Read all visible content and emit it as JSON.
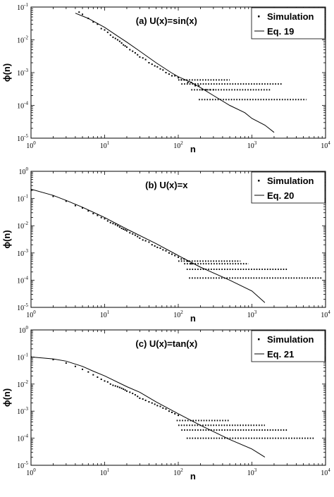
{
  "chart_data": [
    {
      "type": "scatter",
      "title": "(a) U(x)=sin(x)",
      "xlabel": "n",
      "ylabel": "ϕ(n)",
      "xscale": "log",
      "yscale": "log",
      "xlim": [
        1,
        10000
      ],
      "ylim": [
        1e-05,
        0.1
      ],
      "x_ticks": [
        "10^0",
        "10^1",
        "10^2",
        "10^3",
        "10^4"
      ],
      "y_ticks": [
        "10^-5",
        "10^-4",
        "10^-3",
        "10^-2",
        "10^-1"
      ],
      "legend": {
        "position": "top-right",
        "entries": [
          "Simulation",
          "Eq. 19"
        ]
      },
      "series": [
        {
          "name": "Simulation",
          "kind": "points",
          "x": [
            4.5,
            5,
            6,
            7,
            8,
            9,
            10,
            11,
            12,
            13,
            14,
            15,
            16,
            17,
            18,
            19,
            20,
            22,
            24,
            26,
            28,
            30,
            33,
            36,
            40,
            44,
            48,
            52,
            57,
            62,
            68,
            75,
            82,
            90,
            100,
            110,
            120,
            135,
            150,
            170,
            190,
            210,
            240,
            270,
            300
          ],
          "y": [
            0.07,
            0.06,
            0.045,
            0.035,
            0.03,
            0.022,
            0.02,
            0.017,
            0.014,
            0.012,
            0.011,
            0.01,
            0.009,
            0.008,
            0.007,
            0.0065,
            0.006,
            0.005,
            0.0045,
            0.004,
            0.0035,
            0.003,
            0.0028,
            0.0025,
            0.002,
            0.0018,
            0.0016,
            0.0015,
            0.0013,
            0.0012,
            0.001,
            0.0009,
            0.0008,
            0.0008,
            0.0007,
            0.0006,
            0.0006,
            0.0005,
            0.0005,
            0.0004,
            0.0004,
            0.0003,
            0.0003,
            0.0003,
            0.0003
          ]
        },
        {
          "name": "Eq. 19",
          "kind": "line",
          "x": [
            4,
            6,
            10,
            15,
            20,
            30,
            50,
            80,
            100,
            150,
            200,
            300,
            500,
            800,
            1000,
            1500,
            2000
          ],
          "y": [
            0.065,
            0.045,
            0.024,
            0.013,
            0.0085,
            0.0045,
            0.002,
            0.001,
            0.00075,
            0.0005,
            0.00035,
            0.0002,
            0.0001,
            6e-05,
            4e-05,
            2.5e-05,
            1.5e-05
          ]
        }
      ],
      "plateaus": [
        {
          "y": 0.00015,
          "x_from": 190,
          "x_to": 5500
        },
        {
          "y": 0.0003,
          "x_from": 150,
          "x_to": 1800
        },
        {
          "y": 0.00045,
          "x_from": 110,
          "x_to": 2600
        },
        {
          "y": 0.0006,
          "x_from": 100,
          "x_to": 500
        }
      ]
    },
    {
      "type": "scatter",
      "title": "(b) U(x)=x",
      "xlabel": "n",
      "ylabel": "ϕ(n)",
      "xscale": "log",
      "yscale": "log",
      "xlim": [
        1,
        10000
      ],
      "ylim": [
        1e-05,
        1
      ],
      "x_ticks": [
        "10^0",
        "10^1",
        "10^2",
        "10^3",
        "10^4"
      ],
      "y_ticks": [
        "10^-5",
        "10^-4",
        "10^-3",
        "10^-2",
        "10^-1",
        "10^0"
      ],
      "legend": {
        "position": "top-right",
        "entries": [
          "Simulation",
          "Eq. 20"
        ]
      },
      "series": [
        {
          "name": "Simulation",
          "kind": "points",
          "x": [
            1,
            2,
            3,
            4,
            5,
            6,
            7,
            8,
            9,
            10,
            11,
            12,
            13,
            14,
            15,
            16,
            17,
            18,
            19,
            20,
            22,
            24,
            26,
            28,
            30,
            33,
            36,
            40,
            44,
            48,
            52,
            57,
            62,
            68,
            75,
            82,
            90,
            100,
            110,
            120,
            135,
            150
          ],
          "y": [
            0.2,
            0.12,
            0.08,
            0.055,
            0.045,
            0.035,
            0.028,
            0.024,
            0.02,
            0.018,
            0.015,
            0.013,
            0.012,
            0.011,
            0.01,
            0.009,
            0.008,
            0.0075,
            0.007,
            0.0065,
            0.0055,
            0.005,
            0.0045,
            0.004,
            0.0035,
            0.003,
            0.0028,
            0.0025,
            0.002,
            0.0018,
            0.0016,
            0.0015,
            0.0013,
            0.0012,
            0.001,
            0.0009,
            0.0008,
            0.0007,
            0.0006,
            0.0006,
            0.0005,
            0.0004
          ]
        },
        {
          "name": "Eq. 20",
          "kind": "line",
          "x": [
            1,
            2,
            3,
            5,
            10,
            20,
            50,
            100,
            200,
            500,
            1000,
            1500
          ],
          "y": [
            0.22,
            0.13,
            0.085,
            0.048,
            0.02,
            0.0075,
            0.0022,
            0.0008,
            0.0003,
            0.0001,
            4e-05,
            1.5e-05
          ]
        }
      ],
      "plateaus": [
        {
          "y": 0.00012,
          "x_from": 140,
          "x_to": 9000
        },
        {
          "y": 0.00025,
          "x_from": 130,
          "x_to": 3000
        },
        {
          "y": 0.0004,
          "x_from": 120,
          "x_to": 900
        },
        {
          "y": 0.0005,
          "x_from": 100,
          "x_to": 700
        }
      ]
    },
    {
      "type": "scatter",
      "title": "(c) U(x)=tan(x)",
      "xlabel": "n",
      "ylabel": "ϕ(n)",
      "xscale": "log",
      "yscale": "log",
      "xlim": [
        1,
        10000
      ],
      "ylim": [
        1e-05,
        1
      ],
      "x_ticks": [
        "10^0",
        "10^1",
        "10^2",
        "10^3",
        "10^4"
      ],
      "y_ticks": [
        "10^-5",
        "10^-4",
        "10^-3",
        "10^-2",
        "10^-1",
        "10^0"
      ],
      "legend": {
        "position": "top-right",
        "entries": [
          "Simulation",
          "Eq. 21"
        ]
      },
      "series": [
        {
          "name": "Simulation",
          "kind": "points",
          "x": [
            1,
            2,
            3,
            4,
            5,
            6,
            7,
            8,
            9,
            10,
            11,
            12,
            13,
            14,
            15,
            16,
            17,
            18,
            19,
            20,
            22,
            24,
            26,
            28,
            30,
            33,
            36,
            40,
            44,
            48,
            52,
            57,
            62,
            68,
            75,
            82,
            90,
            100
          ],
          "y": [
            0.1,
            0.08,
            0.06,
            0.045,
            0.035,
            0.028,
            0.022,
            0.018,
            0.015,
            0.013,
            0.012,
            0.01,
            0.009,
            0.0085,
            0.008,
            0.0075,
            0.007,
            0.0065,
            0.006,
            0.0055,
            0.005,
            0.0045,
            0.004,
            0.0035,
            0.003,
            0.0028,
            0.0025,
            0.0022,
            0.002,
            0.0018,
            0.0016,
            0.0015,
            0.0013,
            0.0012,
            0.001,
            0.0009,
            0.0008,
            0.0007
          ]
        },
        {
          "name": "Eq. 21",
          "kind": "line",
          "x": [
            1,
            2,
            3,
            5,
            7,
            10,
            20,
            30,
            50,
            100,
            200,
            500,
            1000,
            1500
          ],
          "y": [
            0.1,
            0.085,
            0.07,
            0.045,
            0.03,
            0.02,
            0.008,
            0.005,
            0.0022,
            0.0008,
            0.0003,
            9e-05,
            4e-05,
            2e-05
          ]
        }
      ],
      "plateaus": [
        {
          "y": 0.0001,
          "x_from": 130,
          "x_to": 7000
        },
        {
          "y": 0.0002,
          "x_from": 110,
          "x_to": 3000
        },
        {
          "y": 0.0003,
          "x_from": 100,
          "x_to": 1500
        },
        {
          "y": 0.00045,
          "x_from": 95,
          "x_to": 500
        }
      ]
    }
  ]
}
